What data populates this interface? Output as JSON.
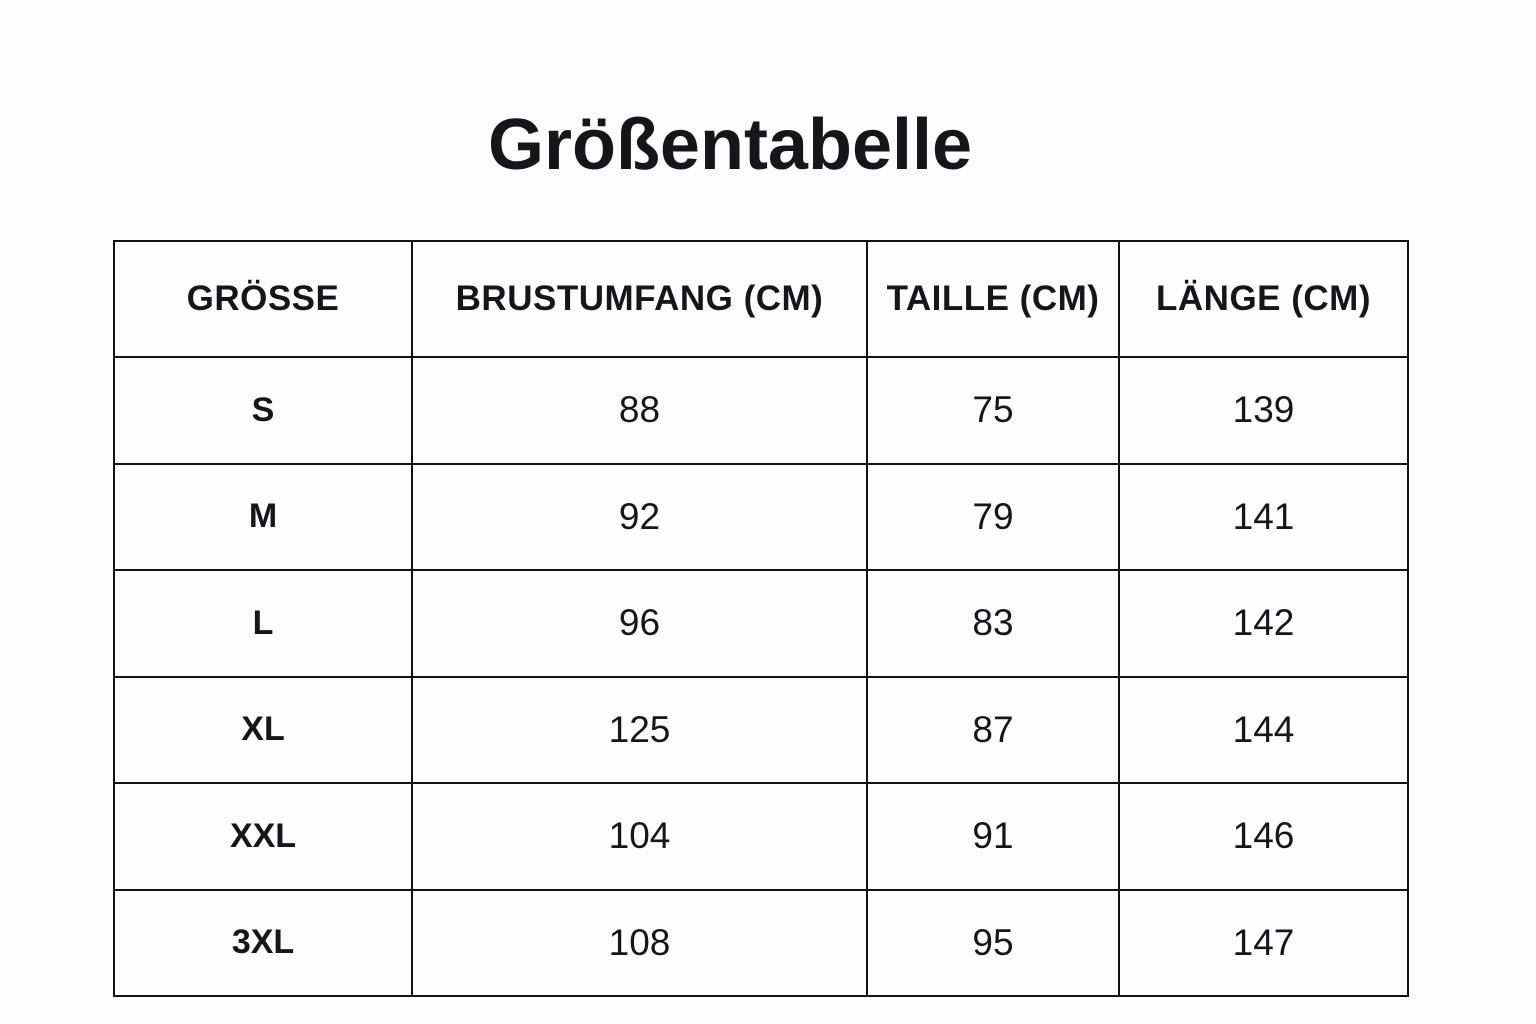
{
  "page": {
    "title": "Größentabelle"
  },
  "colors": {
    "background": "#fdfdfd",
    "text": "#16161a",
    "border": "#111111"
  },
  "table": {
    "columns": [
      {
        "key": "size",
        "label": "GRÖSSE"
      },
      {
        "key": "chest",
        "label": "BRUSTUMFANG (CM)"
      },
      {
        "key": "waist",
        "label": "TAILLE (CM)"
      },
      {
        "key": "length",
        "label": "LÄNGE (CM)"
      }
    ],
    "rows": [
      {
        "size": "S",
        "chest": "88",
        "waist": "75",
        "length": "139"
      },
      {
        "size": "M",
        "chest": "92",
        "waist": "79",
        "length": "141"
      },
      {
        "size": "L",
        "chest": "96",
        "waist": "83",
        "length": "142"
      },
      {
        "size": "XL",
        "chest": "125",
        "waist": "87",
        "length": "144"
      },
      {
        "size": "XXL",
        "chest": "104",
        "waist": "91",
        "length": "146"
      },
      {
        "size": "3XL",
        "chest": "108",
        "waist": "95",
        "length": "147"
      }
    ]
  },
  "chart_data": {
    "type": "table",
    "title": "Größentabelle",
    "columns": [
      "GRÖSSE",
      "BRUSTUMFANG (CM)",
      "TAILLE (CM)",
      "LÄNGE (CM)"
    ],
    "rows": [
      [
        "S",
        88,
        75,
        139
      ],
      [
        "M",
        92,
        79,
        141
      ],
      [
        "L",
        96,
        83,
        142
      ],
      [
        "XL",
        125,
        87,
        144
      ],
      [
        "XXL",
        104,
        91,
        146
      ],
      [
        "3XL",
        108,
        95,
        147
      ]
    ]
  }
}
